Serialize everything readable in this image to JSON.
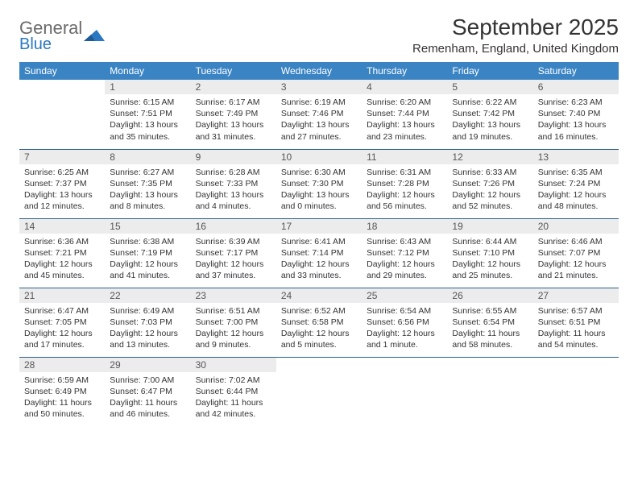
{
  "brand": {
    "word1": "General",
    "word2": "Blue",
    "text_color": "#6a6a6a",
    "accent_color": "#2b78c2"
  },
  "header": {
    "month_title": "September 2025",
    "location": "Remenham, England, United Kingdom",
    "title_fontsize": 28,
    "location_fontsize": 15
  },
  "calendar": {
    "header_bg": "#3b84c4",
    "header_text_color": "#ffffff",
    "daynum_bg": "#ececec",
    "row_border_color": "#2b5f8c",
    "cell_text_color": "#333333",
    "days_of_week": [
      "Sunday",
      "Monday",
      "Tuesday",
      "Wednesday",
      "Thursday",
      "Friday",
      "Saturday"
    ],
    "weeks": [
      [
        null,
        {
          "n": "1",
          "sunrise": "6:15 AM",
          "sunset": "7:51 PM",
          "daylight": "13 hours and 35 minutes."
        },
        {
          "n": "2",
          "sunrise": "6:17 AM",
          "sunset": "7:49 PM",
          "daylight": "13 hours and 31 minutes."
        },
        {
          "n": "3",
          "sunrise": "6:19 AM",
          "sunset": "7:46 PM",
          "daylight": "13 hours and 27 minutes."
        },
        {
          "n": "4",
          "sunrise": "6:20 AM",
          "sunset": "7:44 PM",
          "daylight": "13 hours and 23 minutes."
        },
        {
          "n": "5",
          "sunrise": "6:22 AM",
          "sunset": "7:42 PM",
          "daylight": "13 hours and 19 minutes."
        },
        {
          "n": "6",
          "sunrise": "6:23 AM",
          "sunset": "7:40 PM",
          "daylight": "13 hours and 16 minutes."
        }
      ],
      [
        {
          "n": "7",
          "sunrise": "6:25 AM",
          "sunset": "7:37 PM",
          "daylight": "13 hours and 12 minutes."
        },
        {
          "n": "8",
          "sunrise": "6:27 AM",
          "sunset": "7:35 PM",
          "daylight": "13 hours and 8 minutes."
        },
        {
          "n": "9",
          "sunrise": "6:28 AM",
          "sunset": "7:33 PM",
          "daylight": "13 hours and 4 minutes."
        },
        {
          "n": "10",
          "sunrise": "6:30 AM",
          "sunset": "7:30 PM",
          "daylight": "13 hours and 0 minutes."
        },
        {
          "n": "11",
          "sunrise": "6:31 AM",
          "sunset": "7:28 PM",
          "daylight": "12 hours and 56 minutes."
        },
        {
          "n": "12",
          "sunrise": "6:33 AM",
          "sunset": "7:26 PM",
          "daylight": "12 hours and 52 minutes."
        },
        {
          "n": "13",
          "sunrise": "6:35 AM",
          "sunset": "7:24 PM",
          "daylight": "12 hours and 48 minutes."
        }
      ],
      [
        {
          "n": "14",
          "sunrise": "6:36 AM",
          "sunset": "7:21 PM",
          "daylight": "12 hours and 45 minutes."
        },
        {
          "n": "15",
          "sunrise": "6:38 AM",
          "sunset": "7:19 PM",
          "daylight": "12 hours and 41 minutes."
        },
        {
          "n": "16",
          "sunrise": "6:39 AM",
          "sunset": "7:17 PM",
          "daylight": "12 hours and 37 minutes."
        },
        {
          "n": "17",
          "sunrise": "6:41 AM",
          "sunset": "7:14 PM",
          "daylight": "12 hours and 33 minutes."
        },
        {
          "n": "18",
          "sunrise": "6:43 AM",
          "sunset": "7:12 PM",
          "daylight": "12 hours and 29 minutes."
        },
        {
          "n": "19",
          "sunrise": "6:44 AM",
          "sunset": "7:10 PM",
          "daylight": "12 hours and 25 minutes."
        },
        {
          "n": "20",
          "sunrise": "6:46 AM",
          "sunset": "7:07 PM",
          "daylight": "12 hours and 21 minutes."
        }
      ],
      [
        {
          "n": "21",
          "sunrise": "6:47 AM",
          "sunset": "7:05 PM",
          "daylight": "12 hours and 17 minutes."
        },
        {
          "n": "22",
          "sunrise": "6:49 AM",
          "sunset": "7:03 PM",
          "daylight": "12 hours and 13 minutes."
        },
        {
          "n": "23",
          "sunrise": "6:51 AM",
          "sunset": "7:00 PM",
          "daylight": "12 hours and 9 minutes."
        },
        {
          "n": "24",
          "sunrise": "6:52 AM",
          "sunset": "6:58 PM",
          "daylight": "12 hours and 5 minutes."
        },
        {
          "n": "25",
          "sunrise": "6:54 AM",
          "sunset": "6:56 PM",
          "daylight": "12 hours and 1 minute."
        },
        {
          "n": "26",
          "sunrise": "6:55 AM",
          "sunset": "6:54 PM",
          "daylight": "11 hours and 58 minutes."
        },
        {
          "n": "27",
          "sunrise": "6:57 AM",
          "sunset": "6:51 PM",
          "daylight": "11 hours and 54 minutes."
        }
      ],
      [
        {
          "n": "28",
          "sunrise": "6:59 AM",
          "sunset": "6:49 PM",
          "daylight": "11 hours and 50 minutes."
        },
        {
          "n": "29",
          "sunrise": "7:00 AM",
          "sunset": "6:47 PM",
          "daylight": "11 hours and 46 minutes."
        },
        {
          "n": "30",
          "sunrise": "7:02 AM",
          "sunset": "6:44 PM",
          "daylight": "11 hours and 42 minutes."
        },
        null,
        null,
        null,
        null
      ]
    ],
    "labels": {
      "sunrise_prefix": "Sunrise: ",
      "sunset_prefix": "Sunset: ",
      "daylight_prefix": "Daylight: "
    }
  }
}
